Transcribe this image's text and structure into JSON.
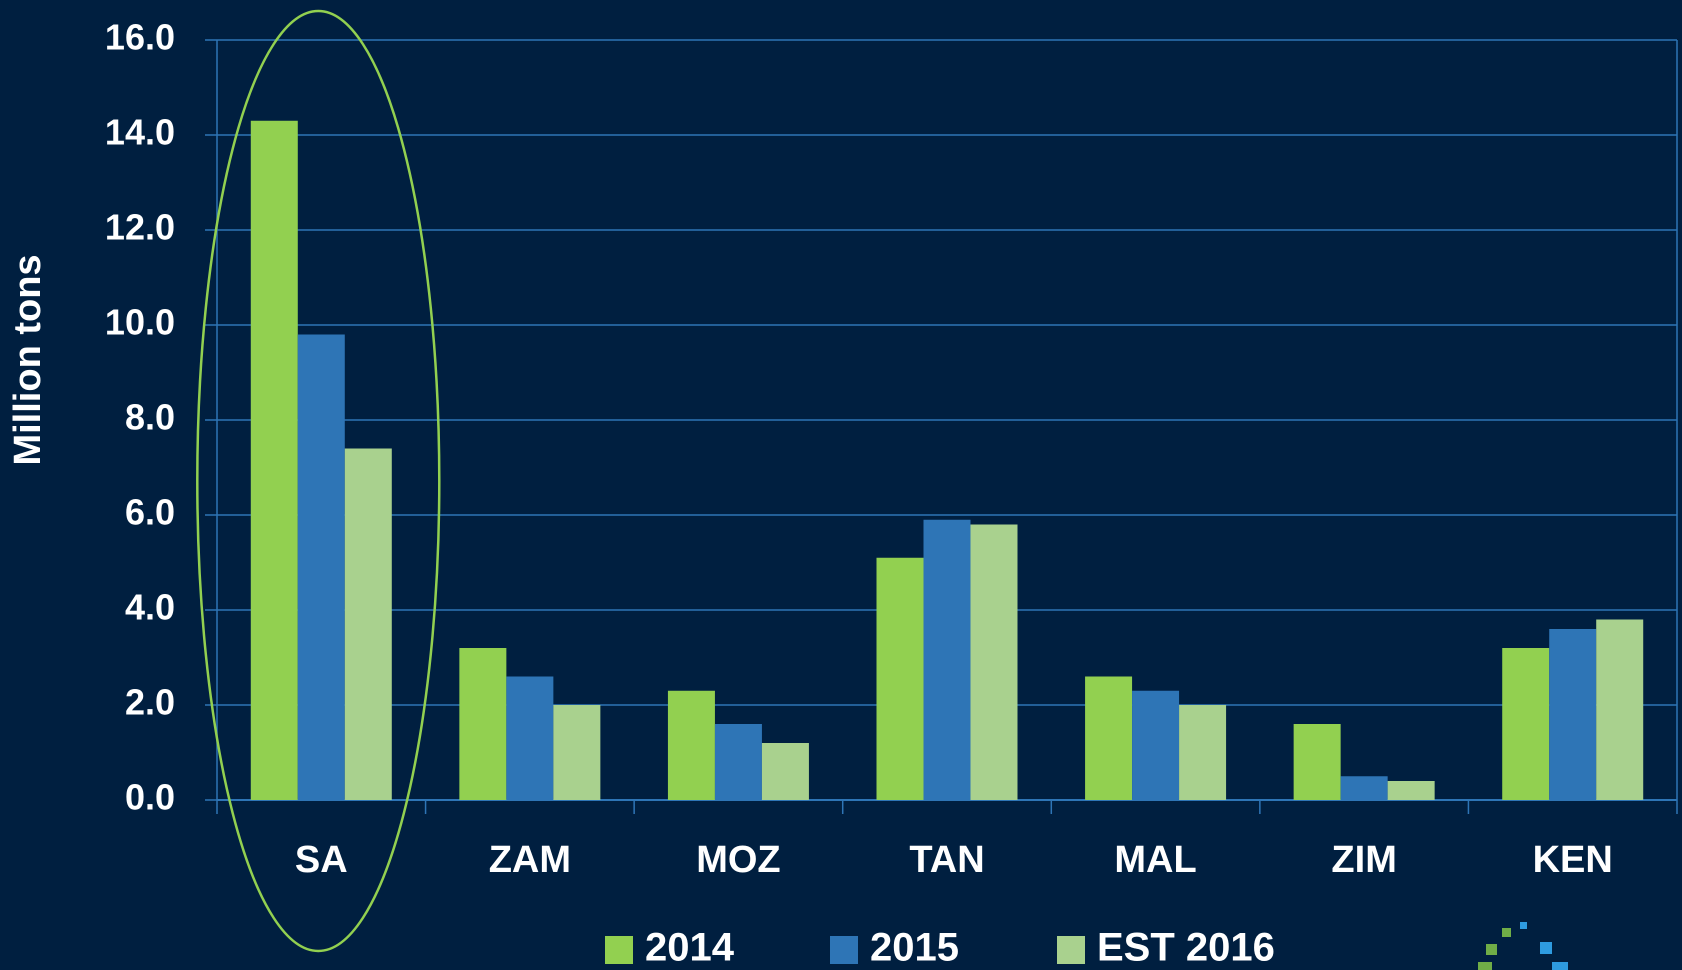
{
  "chart_data": {
    "type": "bar",
    "y_label": "Million tons",
    "categories": [
      "SA",
      "ZAM",
      "MOZ",
      "TAN",
      "MAL",
      "ZIM",
      "KEN"
    ],
    "series": [
      {
        "name": "2014",
        "color": "#92d050",
        "values": [
          14.3,
          3.2,
          2.3,
          5.1,
          2.6,
          1.6,
          3.2
        ]
      },
      {
        "name": "2015",
        "color": "#2e75b6",
        "values": [
          9.8,
          2.6,
          1.6,
          5.9,
          2.3,
          0.5,
          3.6
        ]
      },
      {
        "name": "EST 2016",
        "color": "#a9d18e",
        "values": [
          7.4,
          2.0,
          1.2,
          5.8,
          2.0,
          0.4,
          3.8
        ]
      }
    ],
    "ylim": [
      0,
      16
    ],
    "yticks": [
      {
        "value": 0,
        "label": "0.0"
      },
      {
        "value": 2,
        "label": "2.0"
      },
      {
        "value": 4,
        "label": "4.0"
      },
      {
        "value": 6,
        "label": "6.0"
      },
      {
        "value": 8,
        "label": "8.0"
      },
      {
        "value": 10,
        "label": "10.0"
      },
      {
        "value": 12,
        "label": "12.0"
      },
      {
        "value": 14,
        "label": "14.0"
      },
      {
        "value": 16,
        "label": "16.0"
      }
    ],
    "grid": true,
    "legend": "bottom"
  }
}
